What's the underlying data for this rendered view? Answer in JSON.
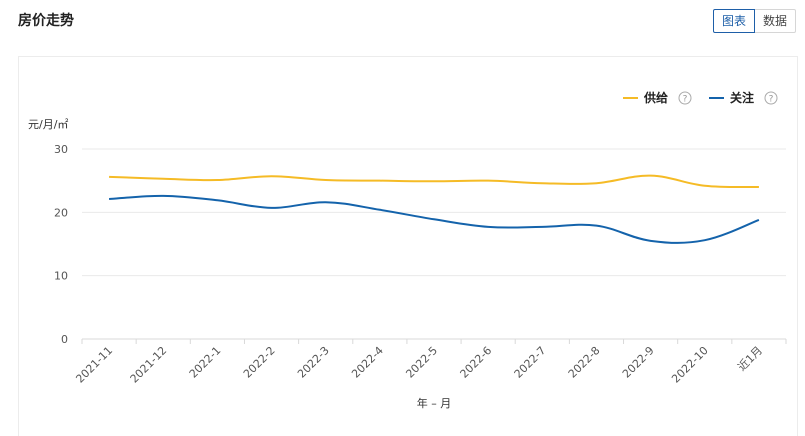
{
  "header": {
    "title": "房价走势",
    "tab_chart": "图表",
    "tab_data": "数据"
  },
  "chart_data": {
    "type": "line",
    "ylabel": "元/月/㎡",
    "xlabel": "年 – 月",
    "ylim": [
      0,
      30
    ],
    "yticks": [
      0,
      10,
      20,
      30
    ],
    "grid": true,
    "legend_position": "top-right",
    "categories": [
      "2021-11",
      "2021-12",
      "2022-1",
      "2022-2",
      "2022-3",
      "2022-4",
      "2022-5",
      "2022-6",
      "2022-7",
      "2022-8",
      "2022-9",
      "2022-10",
      "近1月"
    ],
    "series": [
      {
        "name": "供给",
        "color": "#f5bb26",
        "values": [
          25.6,
          25.3,
          25.1,
          25.7,
          25.1,
          25.0,
          24.9,
          25.0,
          24.6,
          24.6,
          25.8,
          24.2,
          24.0
        ]
      },
      {
        "name": "关注",
        "color": "#1463ab",
        "values": [
          22.1,
          22.6,
          21.9,
          20.7,
          21.6,
          20.4,
          18.9,
          17.7,
          17.7,
          17.9,
          15.5,
          15.6,
          18.8
        ]
      }
    ],
    "legend_help_icon": "question-circle-icon"
  }
}
